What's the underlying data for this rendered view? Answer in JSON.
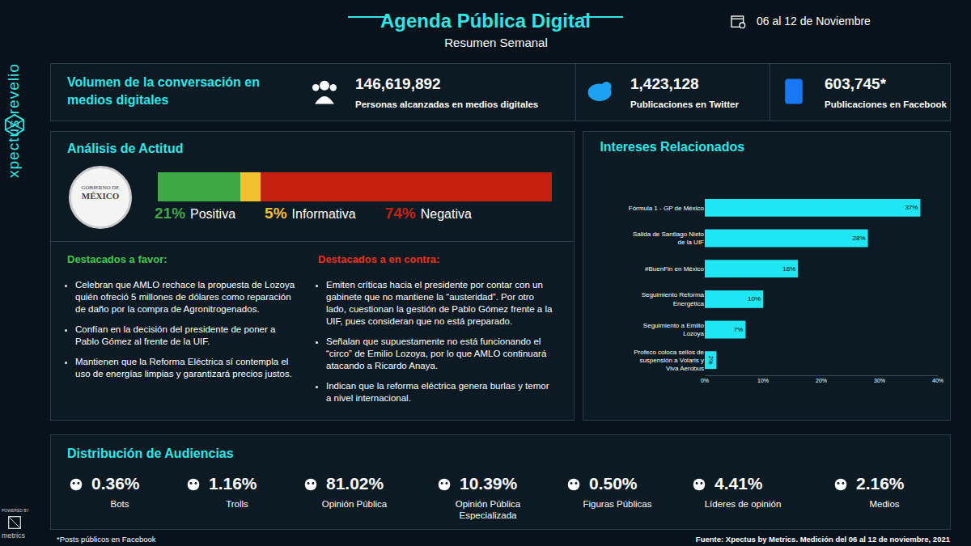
{
  "branding": {
    "side_logo": "xpectus revelio",
    "powered_by": "POWERED BY",
    "powered_logo": "metrics"
  },
  "header": {
    "title": "Agenda Pública Digital",
    "subtitle": "Resumen Semanal",
    "date": "06 al 12 de Noviembre"
  },
  "volume": {
    "label": "Volumen de la conversación en medios digitales",
    "stats": [
      {
        "number": "146,619,892",
        "label": "Personas alcanzadas en medios digitales"
      },
      {
        "number": "1,423,128",
        "label": "Publicaciones en Twitter"
      },
      {
        "number": "603,745*",
        "label": "Publicaciones en Facebook"
      }
    ]
  },
  "attitude": {
    "title": "Análisis de Actitud",
    "seal": [
      "GOBIERNO DE",
      "MÉXICO"
    ],
    "segments": [
      {
        "name": "Positiva",
        "value": 21,
        "value_label": "21%",
        "color": "#3ea845"
      },
      {
        "name": "Informativa",
        "value": 5,
        "value_label": "5%",
        "color": "#f2c12e"
      },
      {
        "name": "Negativa",
        "value": 74,
        "value_label": "74%",
        "color": "#c8200e"
      }
    ]
  },
  "highlights": {
    "favor": {
      "title": "Destacados a favor:",
      "color": "#3ec84a",
      "items": [
        "Celebran que AMLO rechace la propuesta de Lozoya quién ofreció 5 millones de dólares como reparación de daño por la compra de Agronitrogenados.",
        "Confían en la decisión del presidente de poner a Pablo Gómez al frente de la UIF.",
        "Mantienen que la Reforma Eléctrica sí contempla el uso de energías limpias y garantizará precios justos."
      ]
    },
    "contra": {
      "title": "Destacados a en contra:",
      "color": "#e8321e",
      "items": [
        "Emiten críticas hacia el presidente por contar con un gabinete que no mantiene la “austeridad”. Por otro lado, cuestionan la gestión de Pablo Gómez frente a la UIF, pues consideran que no está preparado.",
        "Señalan que supuestamente no está funcionando el “circo” de Emilio Lozoya, por lo que AMLO continuará atacando a Ricardo Anaya.",
        "Indican que la reforma eléctrica genera burlas y temor a nivel internacional."
      ]
    }
  },
  "chart_data": {
    "type": "bar",
    "title": "Intereses Relacionados",
    "orientation": "horizontal",
    "categories": [
      "Fórmula 1 - GP de México",
      "Salida de Santiago Nieto de la UIF",
      "#BuenFin en México",
      "Seguimiento Reforma Energética",
      "Seguimiento a Emilio Lozoya",
      "Profeco coloca sellos de suspensión a Volaris y Viva Aerobus"
    ],
    "values": [
      37,
      28,
      16,
      10,
      7,
      2
    ],
    "value_labels": [
      "37%",
      "28%",
      "16%",
      "10%",
      "7%",
      "2%"
    ],
    "data_labels": true,
    "color": "#1ee6f2",
    "xlim": [
      0,
      40
    ],
    "xticks": [
      {
        "value": 0,
        "label": "0%"
      },
      {
        "value": 10,
        "label": "10%"
      },
      {
        "value": 20,
        "label": "20%"
      },
      {
        "value": 30,
        "label": "30%"
      },
      {
        "value": 40,
        "label": "40%"
      }
    ],
    "grid": false
  },
  "audiences": {
    "title": "Distribución de Audiencias",
    "items": [
      {
        "value": "0.36%",
        "name": "Bots"
      },
      {
        "value": "1.16%",
        "name": "Trolls"
      },
      {
        "value": "81.02%",
        "name": "Opinión Pública"
      },
      {
        "value": "10.39%",
        "name": "Opinión Pública Especializada"
      },
      {
        "value": "0.50%",
        "name": "Figuras Públicas"
      },
      {
        "value": "4.41%",
        "name": "Líderes de opinión"
      },
      {
        "value": "2.16%",
        "name": "Medios"
      }
    ]
  },
  "footer": {
    "note": "*Posts públicos en Facebook",
    "source": "Fuente: Xpectus by Metrics. Medición del 06 al 12 de noviembre, 2021"
  }
}
